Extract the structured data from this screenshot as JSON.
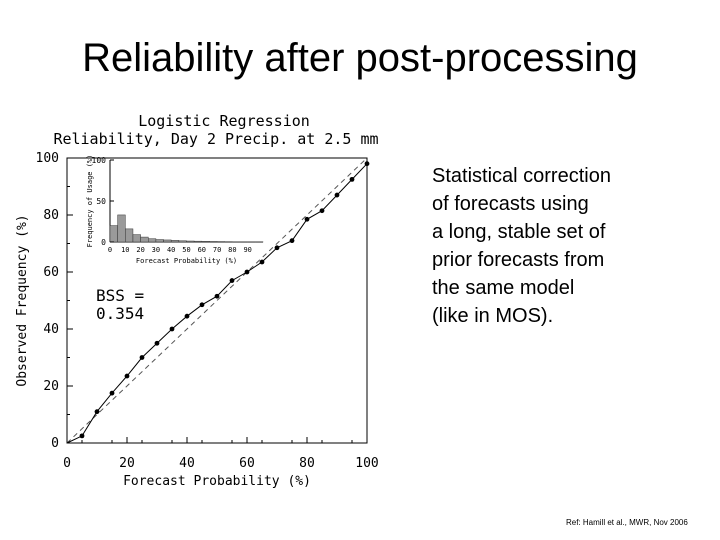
{
  "slide": {
    "title": "Reliability after post-processing",
    "body_lines": [
      "Statistical correction",
      "of forecasts using",
      "a long, stable set of",
      "prior forecasts from",
      "the same model",
      "(like in MOS)."
    ],
    "reference": "Ref: Hamill et al., MWR, Nov 2006"
  },
  "chart_data": {
    "type": "line",
    "title": "Logistic Regression",
    "subtitle": "Reliability, Day 2 Precip. at 2.5 mm",
    "xlabel": "Forecast Probability (%)",
    "ylabel": "Observed Frequency (%)",
    "xlim": [
      0,
      100
    ],
    "ylim": [
      0,
      100
    ],
    "xticks": [
      0,
      20,
      40,
      60,
      80,
      100
    ],
    "yticks": [
      0,
      20,
      40,
      60,
      80,
      100
    ],
    "grid": false,
    "diagonal_reference": true,
    "annotation": {
      "line1": "BSS =",
      "line2": "0.354"
    },
    "series": [
      {
        "x": [
          5,
          10,
          15,
          20,
          25,
          30,
          35,
          40,
          45,
          50,
          55,
          60,
          65,
          70,
          75,
          80,
          85,
          90,
          95,
          100
        ],
        "y": [
          2.5,
          11,
          17.5,
          23.5,
          30,
          35,
          40,
          44.5,
          48.5,
          51.5,
          57,
          60,
          63.5,
          68.5,
          71,
          78.5,
          81.5,
          87,
          92.5,
          98
        ]
      }
    ],
    "inset": {
      "type": "bar",
      "xlabel": "Forecast Probability (%)",
      "ylabel": "Frequency of Usage (%)",
      "xlim": [
        0,
        100
      ],
      "ylim": [
        0,
        100
      ],
      "xticks": [
        0,
        10,
        20,
        30,
        40,
        50,
        60,
        70,
        80,
        90
      ],
      "yticks": [
        0,
        50,
        100
      ],
      "bin_starts": [
        0,
        5,
        10,
        15,
        20,
        25,
        30,
        35,
        40,
        45,
        50,
        55,
        60,
        65,
        70,
        75,
        80,
        85,
        90,
        95
      ],
      "values": [
        20,
        33,
        16,
        9,
        6,
        4,
        3,
        2.5,
        2,
        1.5,
        1.2,
        1,
        0.8,
        0.6,
        0.5,
        0.4,
        0.3,
        0.3,
        0.2,
        0.2
      ]
    }
  }
}
